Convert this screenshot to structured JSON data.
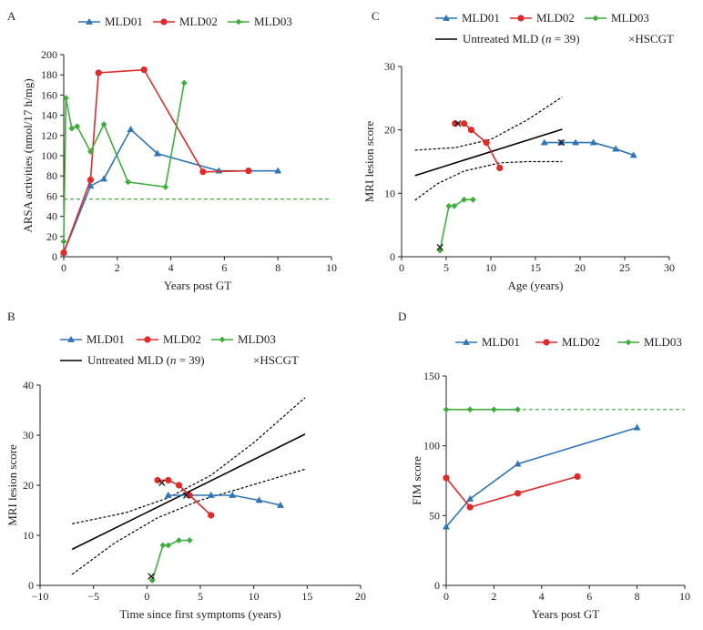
{
  "series_styles": {
    "MLD01": {
      "color": "#2e75b6",
      "marker": "triangle"
    },
    "MLD02": {
      "color": "#e02a2a",
      "marker": "circle"
    },
    "MLD03": {
      "color": "#3dae3d",
      "marker": "diamond"
    }
  },
  "chart_data": [
    {
      "panel": "A",
      "type": "line",
      "xlabel": "Years post GT",
      "ylabel": "ARSA activities (nmol/17 h/mg)",
      "xlim": [
        0,
        10
      ],
      "ylim": [
        0,
        200
      ],
      "xticks": [
        "0",
        "2",
        "4",
        "6",
        "8",
        "10"
      ],
      "yticks": [
        "0",
        "20",
        "40",
        "60",
        "80",
        "100",
        "120",
        "140",
        "160",
        "180",
        "200"
      ],
      "legend": [
        "MLD01",
        "MLD02",
        "MLD03"
      ],
      "reference_line": {
        "y": 57,
        "color": "#3dae3d",
        "style": "dashed"
      },
      "series": [
        {
          "name": "MLD01",
          "x": [
            0,
            1,
            1.5,
            2.5,
            3.5,
            5.8,
            8
          ],
          "y": [
            4,
            70,
            77,
            126,
            102,
            85,
            85
          ]
        },
        {
          "name": "MLD02",
          "x": [
            0,
            1,
            1.3,
            3,
            5.2,
            6.9
          ],
          "y": [
            4,
            76,
            182,
            185,
            84,
            85
          ]
        },
        {
          "name": "MLD03",
          "x": [
            0,
            0.08,
            0.3,
            0.5,
            1,
            1.5,
            2.4,
            3.8,
            4.5
          ],
          "y": [
            15,
            157,
            127,
            129,
            104,
            131,
            74,
            69,
            172
          ]
        }
      ]
    },
    {
      "panel": "C",
      "type": "line",
      "xlabel": "Age (years)",
      "ylabel": "MRI lesion score",
      "xlim": [
        0,
        30
      ],
      "ylim": [
        0,
        30
      ],
      "xticks": [
        "0",
        "5",
        "10",
        "15",
        "20",
        "25",
        "30"
      ],
      "yticks": [
        "0",
        "10",
        "20",
        "30"
      ],
      "legend": [
        "MLD01",
        "MLD02",
        "MLD03",
        "Untreated MLD (n = 39)",
        "×HSCGT"
      ],
      "legend_untreated_prefix": "Untreated MLD (",
      "legend_untreated_n": "n",
      "legend_untreated_suffix": " = 39)",
      "legend_hscgt": "×HSCGT",
      "regression": {
        "x": [
          1.5,
          18
        ],
        "y": [
          12.8,
          20.1
        ]
      },
      "ci_upper": {
        "x": [
          1.5,
          6,
          10,
          14,
          18
        ],
        "y": [
          16.8,
          17.2,
          18.5,
          21.5,
          25.2
        ]
      },
      "ci_lower": {
        "x": [
          1.5,
          4,
          7,
          11,
          14,
          18
        ],
        "y": [
          8.9,
          11.5,
          13.5,
          14.8,
          15.0,
          15.0
        ]
      },
      "series": [
        {
          "name": "MLD01",
          "x": [
            16,
            17.9,
            19.5,
            21.5,
            24,
            26
          ],
          "y": [
            18,
            18,
            18,
            18,
            17,
            16
          ]
        },
        {
          "name": "MLD02",
          "x": [
            6,
            7,
            7.8,
            9.5,
            11
          ],
          "y": [
            21,
            21,
            20,
            18,
            14
          ]
        },
        {
          "name": "MLD03",
          "x": [
            4.3,
            5.3,
            5.9,
            7,
            8
          ],
          "y": [
            1,
            8,
            8,
            9,
            9
          ]
        }
      ],
      "hscgt_marks": [
        {
          "x": 6.3,
          "y": 21
        },
        {
          "x": 17.9,
          "y": 18
        },
        {
          "x": 4.3,
          "y": 1.5
        }
      ]
    },
    {
      "panel": "B",
      "type": "line",
      "xlabel": "Time since first symptoms (years)",
      "ylabel": "MRI lesion score",
      "xlim": [
        -10,
        20
      ],
      "ylim": [
        0,
        40
      ],
      "xticks": [
        "−10",
        "−5",
        "0",
        "5",
        "10",
        "15",
        "20"
      ],
      "yticks": [
        "0",
        "10",
        "20",
        "30",
        "40"
      ],
      "legend": [
        "MLD01",
        "MLD02",
        "MLD03",
        "Untreated MLD (n = 39)",
        "×HSCGT"
      ],
      "legend_untreated_prefix": "Untreated MLD (",
      "legend_untreated_n": "n",
      "legend_untreated_suffix": " = 39)",
      "legend_hscgt": "×HSCGT",
      "regression": {
        "x": [
          -7,
          14.8
        ],
        "y": [
          7.2,
          30.2
        ]
      },
      "ci_upper": {
        "x": [
          -7,
          -2,
          2,
          6,
          10,
          14.8
        ],
        "y": [
          12.3,
          14.5,
          17.5,
          22,
          28.5,
          37.5
        ]
      },
      "ci_lower": {
        "x": [
          -7,
          -3,
          1,
          5,
          9,
          14.8
        ],
        "y": [
          2.2,
          8.5,
          13.5,
          17,
          19.5,
          23.2
        ]
      },
      "series": [
        {
          "name": "MLD01",
          "x": [
            2,
            4,
            6,
            8,
            10.5,
            12.5
          ],
          "y": [
            18,
            18,
            18,
            18,
            17,
            16
          ]
        },
        {
          "name": "MLD02",
          "x": [
            1,
            2,
            3,
            4,
            6
          ],
          "y": [
            21,
            21,
            20,
            18,
            14
          ]
        },
        {
          "name": "MLD03",
          "x": [
            0.5,
            1.5,
            2,
            3,
            4
          ],
          "y": [
            1,
            8,
            8,
            9,
            9
          ]
        }
      ],
      "hscgt_marks": [
        {
          "x": 1.4,
          "y": 20.5
        },
        {
          "x": 3.7,
          "y": 18
        },
        {
          "x": 0.4,
          "y": 1.8
        }
      ]
    },
    {
      "panel": "D",
      "type": "line",
      "xlabel": "Years post GT",
      "ylabel": "FIM score",
      "xlim": [
        0,
        10
      ],
      "ylim": [
        0,
        150
      ],
      "xticks": [
        "0",
        "2",
        "4",
        "6",
        "8",
        "10"
      ],
      "yticks": [
        "0",
        "50",
        "100",
        "150"
      ],
      "legend": [
        "MLD01",
        "MLD02",
        "MLD03"
      ],
      "reference_line": {
        "y": 126,
        "color": "#3dae3d",
        "style": "dashed"
      },
      "series": [
        {
          "name": "MLD01",
          "x": [
            0,
            1,
            3,
            8
          ],
          "y": [
            42,
            62,
            87,
            113
          ]
        },
        {
          "name": "MLD02",
          "x": [
            0,
            1,
            3,
            5.5
          ],
          "y": [
            77,
            56,
            66,
            78
          ]
        },
        {
          "name": "MLD03",
          "x": [
            0,
            1,
            2,
            3
          ],
          "y": [
            126,
            126,
            126,
            126
          ]
        }
      ]
    }
  ]
}
